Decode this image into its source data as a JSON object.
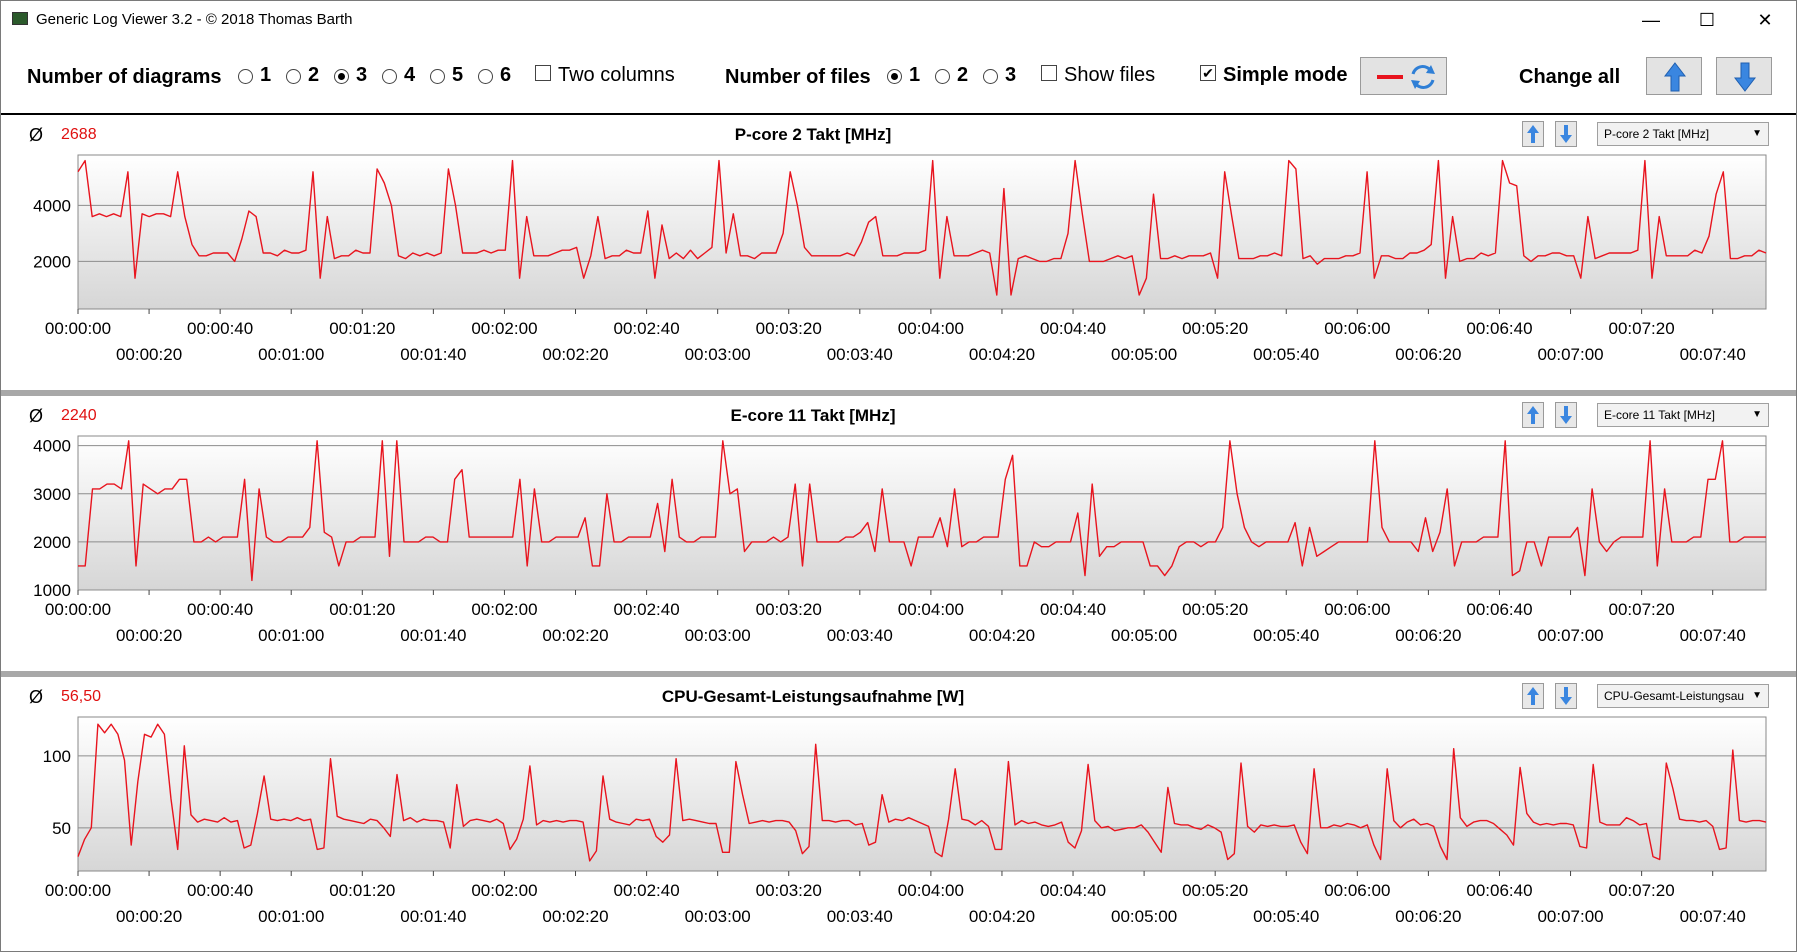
{
  "app": {
    "title": "Generic Log Viewer 3.2 - © 2018 Thomas Barth"
  },
  "window_controls": {
    "minimize": "—",
    "maximize": "☐",
    "close": "✕"
  },
  "toolbar": {
    "num_diagrams_label": "Number of diagrams",
    "diagram_options": [
      "1",
      "2",
      "3",
      "4",
      "5",
      "6"
    ],
    "diagram_selected": "3",
    "two_columns_label": "Two columns",
    "two_columns_checked": false,
    "num_files_label": "Number of files",
    "file_options": [
      "1",
      "2",
      "3"
    ],
    "file_selected": "1",
    "show_files_label": "Show files",
    "show_files_checked": false,
    "simple_mode_label": "Simple mode",
    "simple_mode_checked": true,
    "change_all_label": "Change all",
    "check_mark": "✔"
  },
  "avg_symbol": "Ø",
  "colors": {
    "series": "#e8141e",
    "accent_blue": "#3a86e0"
  },
  "chart_data": [
    {
      "type": "line",
      "title": "P-core 2 Takt [MHz]",
      "average": "2688",
      "selector": "P-core 2 Takt [MHz]",
      "ylim": [
        300,
        5800
      ],
      "yticks": [
        2000,
        4000
      ],
      "xlim": [
        0,
        472
      ],
      "xticks_upper": [
        "00:00:00",
        "00:00:40",
        "00:01:20",
        "00:02:00",
        "00:02:40",
        "00:03:20",
        "00:04:00",
        "00:04:40",
        "00:05:20",
        "00:06:00",
        "00:06:40",
        "00:07:20"
      ],
      "xticks_lower": [
        "00:00:20",
        "00:01:00",
        "00:01:40",
        "00:02:20",
        "00:03:00",
        "00:03:40",
        "00:04:20",
        "00:05:00",
        "00:05:40",
        "00:06:20",
        "00:07:00",
        "00:07:40"
      ],
      "series": [
        {
          "values": [
            5200,
            5600,
            3600,
            3700,
            3600,
            3700,
            3600,
            5200,
            1400,
            3700,
            3600,
            3700,
            3700,
            3600,
            5200,
            3600,
            2600,
            2200,
            2200,
            2300,
            2300,
            2300,
            2000,
            2800,
            3800,
            3600,
            2300,
            2300,
            2200,
            2400,
            2300,
            2300,
            2400,
            5200,
            1400,
            3600,
            2100,
            2200,
            2200,
            2400,
            2300,
            2300,
            5300,
            4800,
            4000,
            2200,
            2100,
            2300,
            2200,
            2300,
            2200,
            2300,
            5300,
            4000,
            2300,
            2300,
            2300,
            2400,
            2300,
            2400,
            2400,
            5600,
            1400,
            3600,
            2200,
            2200,
            2200,
            2300,
            2400,
            2400,
            2500,
            1400,
            2200,
            3600,
            2100,
            2200,
            2200,
            2400,
            2300,
            2300,
            3800,
            1400,
            3300,
            2100,
            2300,
            2100,
            2400,
            2100,
            2300,
            2500,
            5600,
            2300,
            3700,
            2200,
            2200,
            2100,
            2300,
            2300,
            2300,
            3000,
            5200,
            4000,
            2500,
            2200,
            2200,
            2200,
            2200,
            2200,
            2300,
            2200,
            2700,
            3400,
            3600,
            2200,
            2200,
            2200,
            2300,
            2300,
            2300,
            2400,
            5600,
            1400,
            3600,
            2200,
            2200,
            2200,
            2300,
            2400,
            2300,
            800,
            4600,
            800,
            2100,
            2200,
            2100,
            2000,
            2000,
            2100,
            2100,
            3000,
            5600,
            3700,
            2000,
            2000,
            2000,
            2100,
            2200,
            2100,
            2200,
            800,
            1400,
            4400,
            2100,
            2100,
            2200,
            2100,
            2200,
            2200,
            2200,
            2300,
            1400,
            5200,
            3600,
            2100,
            2100,
            2100,
            2200,
            2200,
            2300,
            2200,
            5600,
            5300,
            2100,
            2200,
            1900,
            2100,
            2100,
            2100,
            2200,
            2200,
            2300,
            5200,
            1400,
            2200,
            2200,
            2100,
            2100,
            2300,
            2300,
            2400,
            2600,
            5600,
            1400,
            3600,
            2000,
            2100,
            2100,
            2300,
            2200,
            2300,
            5600,
            4800,
            4700,
            2200,
            2000,
            2200,
            2200,
            2300,
            2300,
            2200,
            2200,
            1400,
            3600,
            2100,
            2200,
            2300,
            2300,
            2300,
            2300,
            2400,
            5600,
            1400,
            3600,
            2200,
            2200,
            2200,
            2200,
            2400,
            2300,
            2900,
            4400,
            5200,
            2100,
            2100,
            2200,
            2200,
            2400,
            2300
          ]
        }
      ]
    },
    {
      "type": "line",
      "title": "E-core 11 Takt [MHz]",
      "average": "2240",
      "selector": "E-core 11 Takt [MHz]",
      "ylim": [
        1000,
        4200
      ],
      "yticks": [
        1000,
        2000,
        3000,
        4000
      ],
      "xlim": [
        0,
        472
      ],
      "xticks_upper": [
        "00:00:00",
        "00:00:40",
        "00:01:20",
        "00:02:00",
        "00:02:40",
        "00:03:20",
        "00:04:00",
        "00:04:40",
        "00:05:20",
        "00:06:00",
        "00:06:40",
        "00:07:20"
      ],
      "xticks_lower": [
        "00:00:20",
        "00:01:00",
        "00:01:40",
        "00:02:20",
        "00:03:00",
        "00:03:40",
        "00:04:20",
        "00:05:00",
        "00:05:40",
        "00:06:20",
        "00:07:00",
        "00:07:40"
      ],
      "series": [
        {
          "values": [
            1500,
            1500,
            3100,
            3100,
            3200,
            3200,
            3100,
            4100,
            1500,
            3200,
            3100,
            3000,
            3100,
            3100,
            3300,
            3300,
            2000,
            2000,
            2100,
            2000,
            2100,
            2100,
            2100,
            3300,
            1200,
            3100,
            2100,
            2000,
            2000,
            2100,
            2100,
            2100,
            2300,
            4100,
            2200,
            2100,
            1500,
            2000,
            2000,
            2100,
            2100,
            2100,
            4100,
            1700,
            4100,
            2000,
            2000,
            2000,
            2100,
            2100,
            2000,
            2000,
            3300,
            3500,
            2100,
            2100,
            2100,
            2100,
            2100,
            2100,
            2100,
            3300,
            1500,
            3100,
            2000,
            2000,
            2100,
            2100,
            2100,
            2100,
            2500,
            1500,
            1500,
            3000,
            2000,
            2000,
            2100,
            2100,
            2100,
            2100,
            2800,
            1800,
            3300,
            2100,
            2000,
            2000,
            2100,
            2100,
            2100,
            4100,
            3000,
            3100,
            1800,
            2000,
            2000,
            2000,
            2100,
            2000,
            2100,
            3200,
            1500,
            3200,
            2000,
            2000,
            2000,
            2000,
            2100,
            2100,
            2200,
            2400,
            1800,
            3100,
            2000,
            2000,
            2000,
            1500,
            2100,
            2100,
            2100,
            2500,
            1900,
            3100,
            1900,
            2000,
            2000,
            2100,
            2100,
            2100,
            3300,
            3800,
            1500,
            1500,
            2000,
            1900,
            1900,
            2000,
            2000,
            2000,
            2600,
            1300,
            3200,
            1700,
            1900,
            1900,
            2000,
            2000,
            2000,
            2000,
            1500,
            1500,
            1300,
            1500,
            1900,
            2000,
            2000,
            1900,
            2000,
            2000,
            2300,
            4100,
            3000,
            2300,
            2000,
            1900,
            2000,
            2000,
            2000,
            2000,
            2400,
            1500,
            2300,
            1700,
            1800,
            1900,
            2000,
            2000,
            2000,
            2000,
            2000,
            4100,
            2300,
            2000,
            2000,
            2000,
            2000,
            1800,
            2500,
            1800,
            2200,
            3100,
            1500,
            2000,
            2000,
            2000,
            2100,
            2100,
            2100,
            4100,
            1300,
            1400,
            2000,
            2000,
            1500,
            2100,
            2100,
            2100,
            2100,
            2300,
            1300,
            3100,
            2000,
            1800,
            2000,
            2100,
            2100,
            2100,
            2100,
            4100,
            1500,
            3100,
            2000,
            2000,
            2000,
            2100,
            2100,
            3300,
            3300,
            4100,
            2000,
            2000,
            2100,
            2100,
            2100,
            2100
          ]
        }
      ]
    },
    {
      "type": "line",
      "title": "CPU-Gesamt-Leistungsaufnahme [W]",
      "average": "56,50",
      "selector": "CPU-Gesamt-Leistungsau",
      "ylim": [
        20,
        127
      ],
      "yticks": [
        50,
        100
      ],
      "xlim": [
        0,
        472
      ],
      "xticks_upper": [
        "00:00:00",
        "00:00:40",
        "00:01:20",
        "00:02:00",
        "00:02:40",
        "00:03:20",
        "00:04:00",
        "00:04:40",
        "00:05:20",
        "00:06:00",
        "00:06:40",
        "00:07:20"
      ],
      "xticks_lower": [
        "00:00:20",
        "00:01:00",
        "00:01:40",
        "00:02:20",
        "00:03:00",
        "00:03:40",
        "00:04:20",
        "00:05:00",
        "00:05:40",
        "00:06:20",
        "00:07:00",
        "00:07:40"
      ],
      "series": [
        {
          "values": [
            30,
            42,
            50,
            122,
            116,
            122,
            115,
            97,
            38,
            82,
            115,
            113,
            122,
            115,
            70,
            35,
            107,
            59,
            54,
            56,
            55,
            54,
            57,
            54,
            55,
            36,
            38,
            60,
            86,
            56,
            55,
            56,
            55,
            57,
            55,
            56,
            35,
            36,
            98,
            58,
            56,
            55,
            54,
            53,
            56,
            55,
            50,
            44,
            87,
            55,
            57,
            54,
            56,
            55,
            55,
            54,
            36,
            80,
            51,
            55,
            56,
            55,
            54,
            56,
            53,
            35,
            42,
            56,
            93,
            52,
            55,
            54,
            55,
            54,
            55,
            55,
            54,
            27,
            34,
            86,
            56,
            54,
            53,
            52,
            56,
            55,
            56,
            44,
            40,
            45,
            98,
            55,
            56,
            55,
            54,
            53,
            53,
            33,
            33,
            96,
            73,
            53,
            54,
            55,
            54,
            55,
            55,
            54,
            48,
            32,
            37,
            108,
            55,
            55,
            54,
            55,
            55,
            52,
            53,
            38,
            40,
            73,
            54,
            56,
            55,
            57,
            55,
            53,
            51,
            33,
            30,
            56,
            91,
            56,
            55,
            52,
            55,
            51,
            35,
            35,
            96,
            52,
            55,
            53,
            54,
            52,
            51,
            52,
            54,
            40,
            36,
            48,
            94,
            55,
            50,
            51,
            48,
            49,
            50,
            50,
            52,
            47,
            40,
            33,
            78,
            53,
            52,
            52,
            50,
            49,
            52,
            50,
            47,
            28,
            32,
            95,
            51,
            47,
            52,
            51,
            52,
            51,
            51,
            52,
            40,
            32,
            91,
            50,
            50,
            52,
            51,
            53,
            52,
            50,
            52,
            38,
            28,
            91,
            55,
            50,
            54,
            56,
            52,
            53,
            51,
            37,
            28,
            105,
            57,
            51,
            54,
            55,
            55,
            53,
            49,
            45,
            38,
            92,
            60,
            54,
            52,
            53,
            52,
            53,
            53,
            52,
            37,
            36,
            94,
            54,
            52,
            52,
            52,
            57,
            55,
            52,
            53,
            30,
            28,
            95,
            77,
            56,
            55,
            55,
            54,
            55,
            51,
            35,
            36,
            104,
            55,
            54,
            55,
            55,
            54
          ]
        }
      ]
    }
  ]
}
